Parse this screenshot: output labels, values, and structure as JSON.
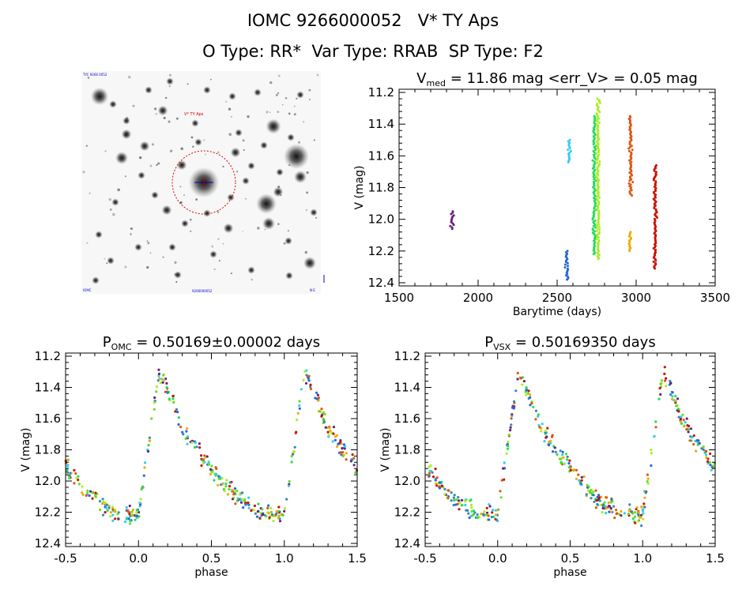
{
  "header": {
    "title_line1": "IOMC 9266000052   V* TY Aps",
    "title_line2": "O Type: RR*  Var Type: RRAB  SP Type: F2"
  },
  "finder": {
    "object_label": "V* TY Aps",
    "corner_tl": "TYC 9266 0052",
    "corner_bl": "IOMC",
    "corner_bottom": "9266000052",
    "corner_br": "N E",
    "colors": {
      "circle": "#dd0000",
      "label": "#cc0000",
      "ticks": "#0000cc",
      "stars": "#1a1a1a"
    }
  },
  "chart_data": [
    {
      "id": "lightcurve",
      "type": "scatter",
      "title_parts": {
        "v": "V",
        "sub": "med",
        "rest": " = 11.86 mag <err_V> = 0.05 mag"
      },
      "xlabel": "Barytime (days)",
      "ylabel": "V (mag)",
      "xlim": [
        1500,
        3500
      ],
      "ylim": [
        12.42,
        11.18
      ],
      "xticks": [
        1500,
        2000,
        2500,
        3000,
        3500
      ],
      "xtick_labels": [
        "1500",
        "2000",
        "2500",
        "3000",
        "3500"
      ],
      "yticks": [
        11.2,
        11.4,
        11.6,
        11.8,
        12.0,
        12.2,
        12.4
      ],
      "ytick_labels": [
        "11.2",
        "11.4",
        "11.6",
        "11.8",
        "12.0",
        "12.2",
        "12.4"
      ],
      "series": [
        {
          "name": "s1",
          "color": "#662277",
          "x": 1835,
          "y": [
            11.95,
            12.06
          ]
        },
        {
          "name": "s2",
          "color": "#2266dd",
          "x": 2560,
          "y": [
            12.2,
            12.38
          ]
        },
        {
          "name": "s3",
          "color": "#33ccee",
          "x": 2575,
          "y": [
            11.5,
            11.64
          ]
        },
        {
          "name": "s4",
          "color": "#22dd55",
          "x": 2735,
          "y": [
            11.35,
            12.22
          ]
        },
        {
          "name": "s5",
          "color": "#aaee22",
          "x": 2760,
          "y": [
            11.24,
            12.25
          ]
        },
        {
          "name": "s6",
          "color": "#eeaa00",
          "x": 2960,
          "y": [
            12.08,
            12.2
          ]
        },
        {
          "name": "s7",
          "color": "#dd5511",
          "x": 2965,
          "y": [
            11.35,
            11.85
          ]
        },
        {
          "name": "s8",
          "color": "#cc1100",
          "x": 3120,
          "y": [
            11.66,
            12.31
          ]
        }
      ]
    },
    {
      "id": "phase_omc",
      "type": "scatter",
      "title_parts": {
        "v": "P",
        "sub": "OMC",
        "rest": " = 0.50169±0.00002 days"
      },
      "period_days": 0.50169,
      "xlabel": "phase",
      "ylabel": "V (mag)",
      "xlim": [
        -0.5,
        1.5
      ],
      "ylim": [
        12.42,
        11.18
      ],
      "xticks": [
        -0.5,
        0.0,
        0.5,
        1.0,
        1.5
      ],
      "xtick_labels": [
        "-0.5",
        "0.0",
        "0.5",
        "1.0",
        "1.5"
      ],
      "yticks": [
        11.2,
        11.4,
        11.6,
        11.8,
        12.0,
        12.2,
        12.4
      ],
      "ytick_labels": [
        "11.2",
        "11.4",
        "11.6",
        "11.8",
        "12.0",
        "12.2",
        "12.4"
      ],
      "template": {
        "phase": [
          0.0,
          0.08,
          0.14,
          0.2,
          0.3,
          0.45,
          0.65,
          0.85,
          1.0
        ],
        "mag": [
          12.22,
          11.7,
          11.3,
          11.42,
          11.66,
          11.86,
          12.08,
          12.22,
          12.22
        ]
      }
    },
    {
      "id": "phase_vsx",
      "type": "scatter",
      "title_parts": {
        "v": "P",
        "sub": "VSX",
        "rest": " = 0.50169350 days"
      },
      "period_days": 0.5016935,
      "xlabel": "phase",
      "ylabel": "V (mag)",
      "xlim": [
        -0.5,
        1.5
      ],
      "ylim": [
        12.42,
        11.18
      ],
      "xticks": [
        -0.5,
        0.0,
        0.5,
        1.0,
        1.5
      ],
      "xtick_labels": [
        "-0.5",
        "0.0",
        "0.5",
        "1.0",
        "1.5"
      ],
      "yticks": [
        11.2,
        11.4,
        11.6,
        11.8,
        12.0,
        12.2,
        12.4
      ],
      "ytick_labels": [
        "11.2",
        "11.4",
        "11.6",
        "11.8",
        "12.0",
        "12.2",
        "12.4"
      ],
      "template": {
        "phase": [
          0.0,
          0.08,
          0.14,
          0.2,
          0.3,
          0.45,
          0.65,
          0.85,
          1.0
        ],
        "mag": [
          12.22,
          11.7,
          11.3,
          11.42,
          11.66,
          11.86,
          12.08,
          12.22,
          12.22
        ]
      }
    }
  ]
}
